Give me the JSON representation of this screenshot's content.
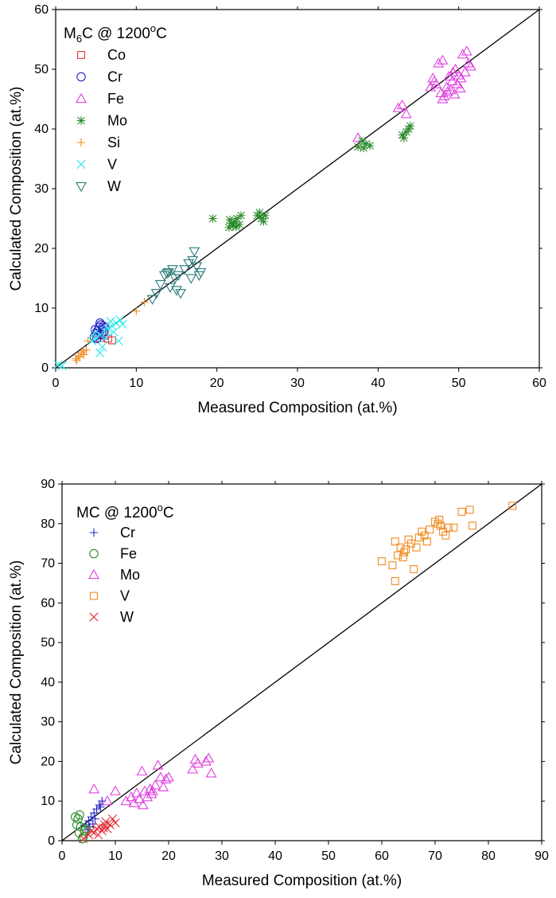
{
  "chart_data": [
    {
      "type": "scatter",
      "title": "M6C @ 1200oC",
      "title_parts": {
        "main": "M",
        "sub": "6",
        "mid": "C @ 1200",
        "sup": "o",
        "end": "C"
      },
      "xlabel": "Measured Composition (at.%)",
      "ylabel": "Calculated Composition (at.%)",
      "xlim": [
        0,
        60
      ],
      "ylim": [
        0,
        60
      ],
      "xticks": [
        0,
        10,
        20,
        30,
        40,
        50,
        60
      ],
      "yticks": [
        0,
        10,
        20,
        30,
        40,
        50,
        60
      ],
      "reference_line": "y = x",
      "legend_position": "top-left",
      "series": [
        {
          "name": "Co",
          "marker": "square",
          "color": "#e8303a",
          "points": [
            [
              5.5,
              5.0
            ],
            [
              6.0,
              5.4
            ],
            [
              6.5,
              4.9
            ],
            [
              7.0,
              4.6
            ],
            [
              5.2,
              5.8
            ]
          ]
        },
        {
          "name": "Cr",
          "marker": "circle",
          "color": "#2323c8",
          "points": [
            [
              4.8,
              5.2
            ],
            [
              5.0,
              5.8
            ],
            [
              5.2,
              6.2
            ],
            [
              5.4,
              6.8
            ],
            [
              5.6,
              7.2
            ],
            [
              5.8,
              6.5
            ],
            [
              6.0,
              6.0
            ],
            [
              5.3,
              5.5
            ],
            [
              5.5,
              7.5
            ],
            [
              4.9,
              6.4
            ],
            [
              5.7,
              5.6
            ],
            [
              6.1,
              6.8
            ],
            [
              5.1,
              4.9
            ],
            [
              5.9,
              7.0
            ]
          ]
        },
        {
          "name": "Fe",
          "marker": "triangle-up",
          "color": "#e040e0",
          "points": [
            [
              37.5,
              38.5
            ],
            [
              42.5,
              43.5
            ],
            [
              43.5,
              42.5
            ],
            [
              43.0,
              44.0
            ],
            [
              46.5,
              47.0
            ],
            [
              47.0,
              48.0
            ],
            [
              47.5,
              51.0
            ],
            [
              48.0,
              51.5
            ],
            [
              47.8,
              46.0
            ],
            [
              48.2,
              45.5
            ],
            [
              48.5,
              47.0
            ],
            [
              49.0,
              46.5
            ],
            [
              49.2,
              48.0
            ],
            [
              49.5,
              45.8
            ],
            [
              49.8,
              47.5
            ],
            [
              50.0,
              49.0
            ],
            [
              50.3,
              48.5
            ],
            [
              50.5,
              52.5
            ],
            [
              51.0,
              53.0
            ],
            [
              51.5,
              50.5
            ],
            [
              48.8,
              48.8
            ],
            [
              49.6,
              50.0
            ],
            [
              50.8,
              49.5
            ],
            [
              47.2,
              47.5
            ],
            [
              48.6,
              46.2
            ],
            [
              50.2,
              46.8
            ],
            [
              49.3,
              49.5
            ],
            [
              48.0,
              45.0
            ],
            [
              51.2,
              51.0
            ],
            [
              46.8,
              48.5
            ]
          ]
        },
        {
          "name": "Mo",
          "marker": "asterisk",
          "color": "#2a8a2a",
          "points": [
            [
              19.5,
              25.0
            ],
            [
              21.5,
              23.5
            ],
            [
              21.8,
              24.2
            ],
            [
              22.0,
              23.8
            ],
            [
              22.2,
              24.5
            ],
            [
              22.5,
              25.0
            ],
            [
              22.8,
              24.0
            ],
            [
              23.0,
              25.5
            ],
            [
              21.6,
              24.8
            ],
            [
              22.4,
              23.6
            ],
            [
              25.0,
              25.5
            ],
            [
              25.5,
              25.0
            ],
            [
              25.8,
              24.5
            ],
            [
              26.0,
              25.5
            ],
            [
              25.3,
              26.0
            ],
            [
              37.5,
              37.0
            ],
            [
              38.0,
              38.0
            ],
            [
              38.5,
              37.5
            ],
            [
              38.2,
              36.8
            ],
            [
              39.0,
              37.2
            ],
            [
              43.0,
              39.0
            ],
            [
              43.5,
              39.5
            ],
            [
              44.0,
              40.5
            ],
            [
              43.2,
              38.5
            ],
            [
              43.8,
              40.0
            ]
          ]
        },
        {
          "name": "Si",
          "marker": "plus",
          "color": "#f08a20",
          "points": [
            [
              2.5,
              1.5
            ],
            [
              2.8,
              2.0
            ],
            [
              3.0,
              1.8
            ],
            [
              3.2,
              2.5
            ],
            [
              3.5,
              2.2
            ],
            [
              3.8,
              3.0
            ],
            [
              2.6,
              1.2
            ],
            [
              3.4,
              2.8
            ],
            [
              4.0,
              4.5
            ],
            [
              10.0,
              9.5
            ],
            [
              11.0,
              11.0
            ]
          ]
        },
        {
          "name": "V",
          "marker": "x",
          "color": "#30e8e8",
          "points": [
            [
              0.3,
              0.5
            ],
            [
              0.8,
              0.3
            ],
            [
              4.5,
              4.5
            ],
            [
              5.0,
              5.0
            ],
            [
              5.5,
              5.5
            ],
            [
              6.0,
              6.2
            ],
            [
              6.5,
              6.5
            ],
            [
              7.0,
              7.0
            ],
            [
              7.5,
              7.5
            ],
            [
              8.0,
              8.0
            ],
            [
              5.8,
              3.5
            ],
            [
              5.5,
              2.5
            ],
            [
              6.2,
              5.0
            ],
            [
              7.2,
              6.0
            ],
            [
              7.8,
              4.5
            ],
            [
              6.8,
              7.8
            ],
            [
              8.3,
              7.3
            ],
            [
              4.8,
              5.8
            ]
          ]
        },
        {
          "name": "W",
          "marker": "triangle-down",
          "color": "#2a7a7a",
          "points": [
            [
              12.0,
              11.5
            ],
            [
              12.5,
              12.5
            ],
            [
              13.0,
              14.0
            ],
            [
              13.5,
              15.5
            ],
            [
              14.0,
              16.0
            ],
            [
              14.5,
              16.5
            ],
            [
              14.8,
              15.0
            ],
            [
              15.0,
              13.0
            ],
            [
              15.5,
              12.5
            ],
            [
              15.2,
              15.5
            ],
            [
              16.0,
              16.5
            ],
            [
              16.5,
              17.5
            ],
            [
              17.0,
              18.0
            ],
            [
              17.2,
              19.5
            ],
            [
              17.5,
              17.0
            ],
            [
              17.8,
              15.5
            ],
            [
              18.0,
              16.0
            ],
            [
              16.8,
              15.0
            ],
            [
              14.2,
              13.5
            ],
            [
              13.8,
              15.8
            ]
          ]
        }
      ]
    },
    {
      "type": "scatter",
      "title": "MC @ 1200oC",
      "title_parts": {
        "main": "MC @ 1200",
        "sub": "",
        "mid": "",
        "sup": "o",
        "end": "C"
      },
      "xlabel": "Measured Composition (at.%)",
      "ylabel": "Calculated Composition (at.%)",
      "xlim": [
        0,
        90
      ],
      "ylim": [
        0,
        90
      ],
      "xticks": [
        0,
        10,
        20,
        30,
        40,
        50,
        60,
        70,
        80,
        90
      ],
      "yticks": [
        0,
        10,
        20,
        30,
        40,
        50,
        60,
        70,
        80,
        90
      ],
      "reference_line": "y = x",
      "legend_position": "top-left",
      "series": [
        {
          "name": "Cr",
          "marker": "plus",
          "color": "#2323c8",
          "points": [
            [
              4.5,
              4.0
            ],
            [
              5.0,
              5.0
            ],
            [
              5.5,
              6.0
            ],
            [
              6.0,
              7.0
            ],
            [
              6.5,
              8.0
            ],
            [
              7.0,
              9.0
            ],
            [
              7.5,
              10.0
            ],
            [
              5.2,
              3.5
            ],
            [
              6.2,
              5.5
            ],
            [
              4.8,
              2.8
            ],
            [
              7.2,
              8.5
            ],
            [
              5.8,
              4.2
            ]
          ]
        },
        {
          "name": "Fe",
          "marker": "circle",
          "color": "#2a8a2a",
          "points": [
            [
              2.5,
              6.0
            ],
            [
              3.0,
              5.5
            ],
            [
              3.2,
              2.0
            ],
            [
              3.5,
              3.5
            ],
            [
              4.0,
              1.0
            ],
            [
              4.2,
              2.5
            ],
            [
              2.8,
              4.0
            ],
            [
              3.8,
              0.5
            ],
            [
              4.5,
              3.0
            ],
            [
              3.3,
              6.5
            ]
          ]
        },
        {
          "name": "Mo",
          "marker": "triangle-up",
          "color": "#e040e0",
          "points": [
            [
              6.0,
              13.0
            ],
            [
              8.5,
              10.0
            ],
            [
              10.0,
              12.5
            ],
            [
              12.0,
              10.0
            ],
            [
              13.0,
              11.0
            ],
            [
              14.0,
              12.0
            ],
            [
              14.5,
              10.5
            ],
            [
              15.0,
              17.5
            ],
            [
              15.2,
              9.0
            ],
            [
              15.5,
              12.5
            ],
            [
              16.0,
              11.0
            ],
            [
              16.5,
              13.0
            ],
            [
              17.0,
              12.5
            ],
            [
              17.5,
              14.0
            ],
            [
              18.0,
              19.0
            ],
            [
              18.5,
              16.0
            ],
            [
              19.0,
              13.5
            ],
            [
              19.5,
              15.5
            ],
            [
              20.0,
              16.0
            ],
            [
              24.5,
              18.0
            ],
            [
              25.0,
              20.5
            ],
            [
              25.5,
              19.5
            ],
            [
              27.0,
              20.0
            ],
            [
              27.5,
              20.8
            ],
            [
              28.0,
              17.0
            ],
            [
              13.5,
              9.5
            ],
            [
              16.8,
              11.8
            ]
          ]
        },
        {
          "name": "V",
          "marker": "square",
          "color": "#f08a20",
          "points": [
            [
              60.0,
              70.5
            ],
            [
              62.0,
              69.5
            ],
            [
              62.5,
              75.5
            ],
            [
              63.0,
              72.0
            ],
            [
              63.5,
              74.0
            ],
            [
              64.0,
              71.5
            ],
            [
              64.5,
              73.5
            ],
            [
              65.0,
              76.0
            ],
            [
              65.5,
              75.0
            ],
            [
              66.0,
              68.5
            ],
            [
              66.5,
              74.0
            ],
            [
              67.0,
              76.5
            ],
            [
              67.5,
              78.0
            ],
            [
              68.0,
              77.0
            ],
            [
              68.5,
              75.5
            ],
            [
              69.0,
              78.5
            ],
            [
              70.0,
              80.5
            ],
            [
              70.5,
              80.0
            ],
            [
              71.0,
              79.5
            ],
            [
              71.5,
              78.0
            ],
            [
              72.0,
              77.0
            ],
            [
              72.5,
              79.0
            ],
            [
              73.5,
              79.0
            ],
            [
              75.0,
              83.0
            ],
            [
              76.5,
              83.5
            ],
            [
              77.0,
              79.5
            ],
            [
              84.5,
              84.5
            ],
            [
              62.5,
              65.5
            ],
            [
              70.8,
              81.0
            ],
            [
              64.2,
              72.8
            ]
          ]
        },
        {
          "name": "W",
          "marker": "x",
          "color": "#e8303a",
          "points": [
            [
              4.0,
              0.5
            ],
            [
              5.0,
              1.5
            ],
            [
              5.5,
              2.5
            ],
            [
              6.0,
              2.0
            ],
            [
              6.5,
              3.0
            ],
            [
              7.0,
              3.5
            ],
            [
              7.5,
              2.5
            ],
            [
              8.0,
              4.0
            ],
            [
              8.5,
              3.0
            ],
            [
              9.0,
              4.0
            ],
            [
              9.5,
              5.5
            ],
            [
              10.0,
              4.5
            ],
            [
              6.8,
              1.5
            ],
            [
              8.2,
              4.8
            ],
            [
              7.8,
              3.2
            ]
          ]
        }
      ]
    }
  ]
}
